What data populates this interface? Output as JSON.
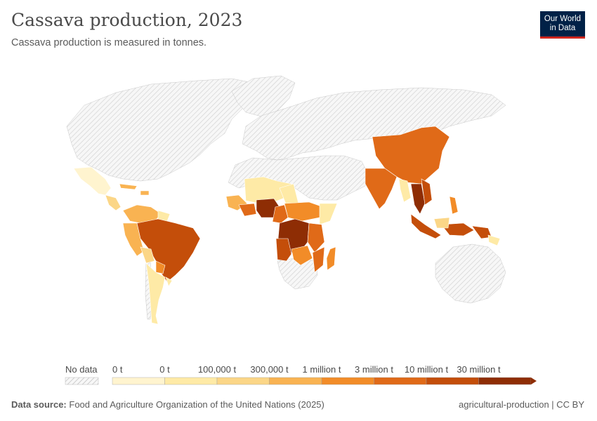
{
  "header": {
    "title": "Cassava production, 2023",
    "subtitle": "Cassava production is measured in tonnes."
  },
  "logo": {
    "line1": "Our World",
    "line2": "in Data"
  },
  "colors": {
    "no_data": "#e6e6e6",
    "c0": "#fff4cf",
    "c1": "#feeaa6",
    "c2": "#fbd687",
    "c3": "#f9b352",
    "c4": "#f28c28",
    "c5": "#e06a18",
    "c6": "#c44e0a",
    "c7": "#8e2d04",
    "border": "#ffffff"
  },
  "legend": {
    "no_data_label": "No data",
    "bins": [
      {
        "label": "0 t"
      },
      {
        "label": "0 t"
      },
      {
        "label": "100,000 t"
      },
      {
        "label": "300,000 t"
      },
      {
        "label": "1 million t"
      },
      {
        "label": "3 million t"
      },
      {
        "label": "10 million t"
      },
      {
        "label": "30 million t"
      }
    ]
  },
  "footer": {
    "source_label": "Data source:",
    "source_text": "Food and Agriculture Organization of the United Nations (2025)",
    "right_text": "agricultural-production | CC BY"
  }
}
